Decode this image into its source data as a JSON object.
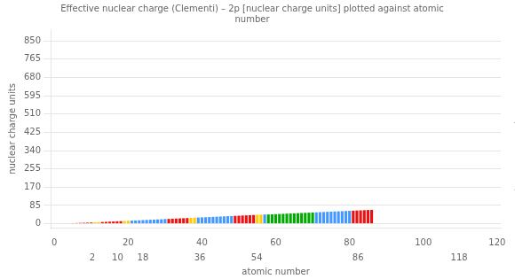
{
  "chart_data": {
    "type": "bar",
    "title": [
      "Effective nuclear charge (Clementi) – 2p [nuclear charge units] plotted against atomic",
      "number"
    ],
    "xlabel": "atomic number",
    "ylabel": "nuclear charge units",
    "x": [
      3,
      4,
      5,
      6,
      7,
      8,
      9,
      10,
      11,
      12,
      13,
      14,
      15,
      16,
      17,
      18,
      19,
      20,
      21,
      22,
      23,
      24,
      25,
      26,
      27,
      28,
      29,
      30,
      31,
      32,
      33,
      34,
      35,
      36,
      37,
      38,
      39,
      40,
      41,
      42,
      43,
      44,
      45,
      46,
      47,
      48,
      49,
      50,
      51,
      52,
      53,
      54,
      55,
      56,
      57,
      58,
      59,
      60,
      61,
      62,
      63,
      64,
      65,
      66,
      67,
      68,
      69,
      70,
      71,
      72,
      73,
      74,
      75,
      76,
      77,
      78,
      79,
      80,
      81,
      82,
      83,
      84,
      85,
      86
    ],
    "values": [
      1.28,
      1.91,
      2.58,
      3.22,
      3.85,
      4.49,
      5.13,
      5.76,
      6.57,
      7.39,
      8.21,
      9.02,
      9.82,
      10.63,
      11.43,
      12.23,
      13.01,
      13.78,
      14.57,
      15.36,
      16.16,
      16.95,
      17.74,
      18.53,
      19.32,
      20.11,
      20.92,
      21.73,
      22.52,
      23.32,
      24.11,
      24.9,
      25.69,
      26.49,
      27.27,
      28.06,
      28.85,
      29.64,
      30.43,
      31.22,
      32.01,
      32.8,
      33.59,
      34.38,
      35.17,
      35.96,
      36.75,
      37.54,
      38.33,
      39.12,
      39.91,
      40.7,
      41.49,
      42.28,
      43.07,
      43.09,
      43.86,
      44.63,
      45.4,
      46.17,
      46.94,
      47.71,
      48.48,
      49.25,
      50.02,
      50.79,
      51.56,
      52.33,
      53.1,
      53.87,
      54.64,
      55.41,
      56.18,
      56.95,
      57.72,
      58.49,
      59.26,
      60.03,
      60.8,
      61.57,
      62.34,
      63.11,
      63.88,
      64.65
    ],
    "colors": [
      "#ffcc00",
      "#ffcc00",
      "#ee1111",
      "#ee1111",
      "#ee1111",
      "#ee1111",
      "#ee1111",
      "#ee1111",
      "#ffcc00",
      "#ffcc00",
      "#ee1111",
      "#ee1111",
      "#ee1111",
      "#ee1111",
      "#ee1111",
      "#ee1111",
      "#ffcc00",
      "#ffcc00",
      "#4499ff",
      "#4499ff",
      "#4499ff",
      "#4499ff",
      "#4499ff",
      "#4499ff",
      "#4499ff",
      "#4499ff",
      "#4499ff",
      "#4499ff",
      "#ee1111",
      "#ee1111",
      "#ee1111",
      "#ee1111",
      "#ee1111",
      "#ee1111",
      "#ffcc00",
      "#ffcc00",
      "#4499ff",
      "#4499ff",
      "#4499ff",
      "#4499ff",
      "#4499ff",
      "#4499ff",
      "#4499ff",
      "#4499ff",
      "#4499ff",
      "#4499ff",
      "#ee1111",
      "#ee1111",
      "#ee1111",
      "#ee1111",
      "#ee1111",
      "#ee1111",
      "#ffcc00",
      "#ffcc00",
      "#4499ff",
      "#00aa00",
      "#00aa00",
      "#00aa00",
      "#00aa00",
      "#00aa00",
      "#00aa00",
      "#00aa00",
      "#00aa00",
      "#00aa00",
      "#00aa00",
      "#00aa00",
      "#00aa00",
      "#00aa00",
      "#4499ff",
      "#4499ff",
      "#4499ff",
      "#4499ff",
      "#4499ff",
      "#4499ff",
      "#4499ff",
      "#4499ff",
      "#4499ff",
      "#4499ff",
      "#ee1111",
      "#ee1111",
      "#ee1111",
      "#ee1111",
      "#ee1111",
      "#ee1111"
    ],
    "xlim": [
      -1,
      121
    ],
    "xticks": [
      0,
      20,
      40,
      60,
      80,
      100,
      120
    ],
    "x2ticks": [
      2,
      10,
      18,
      36,
      54,
      86,
      118
    ],
    "ylim": [
      -18,
      900
    ],
    "yticks": [
      0,
      85,
      170,
      255,
      340,
      425,
      510,
      595,
      680,
      765,
      850
    ],
    "grid": true,
    "annotations": [
      "© Mark Winter (webelements.com)"
    ]
  }
}
